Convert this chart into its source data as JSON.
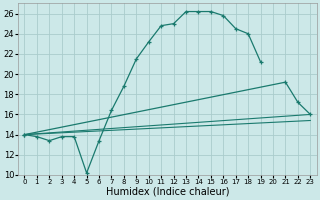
{
  "xlabel": "Humidex (Indice chaleur)",
  "background_color": "#cce8e8",
  "grid_color": "#aacccc",
  "line_color": "#1a7a6e",
  "xlim": [
    -0.5,
    23.5
  ],
  "ylim": [
    10,
    27
  ],
  "xticks": [
    0,
    1,
    2,
    3,
    4,
    5,
    6,
    7,
    8,
    9,
    10,
    11,
    12,
    13,
    14,
    15,
    16,
    17,
    18,
    19,
    20,
    21,
    22,
    23
  ],
  "yticks": [
    10,
    12,
    14,
    16,
    18,
    20,
    22,
    24,
    26
  ],
  "line1_x": [
    0,
    1,
    2,
    3,
    4,
    5,
    6,
    7,
    8,
    9,
    10,
    11,
    12,
    13,
    14,
    15,
    16,
    17,
    18,
    19
  ],
  "line1_y": [
    14,
    13.8,
    13.4,
    13.8,
    13.8,
    10.2,
    13.4,
    16.4,
    18.8,
    21.5,
    23.2,
    24.8,
    25.0,
    26.2,
    26.2,
    26.2,
    25.8,
    24.5,
    24.0,
    21.2
  ],
  "line2_x": [
    0,
    21,
    22,
    23
  ],
  "line2_y": [
    14,
    19.2,
    17.2,
    16.0
  ],
  "line3_x": [
    0,
    23
  ],
  "line3_y": [
    14,
    16.0
  ],
  "line4_x": [
    0,
    23
  ],
  "line4_y": [
    14,
    15.4
  ],
  "xlabel_fontsize": 7
}
